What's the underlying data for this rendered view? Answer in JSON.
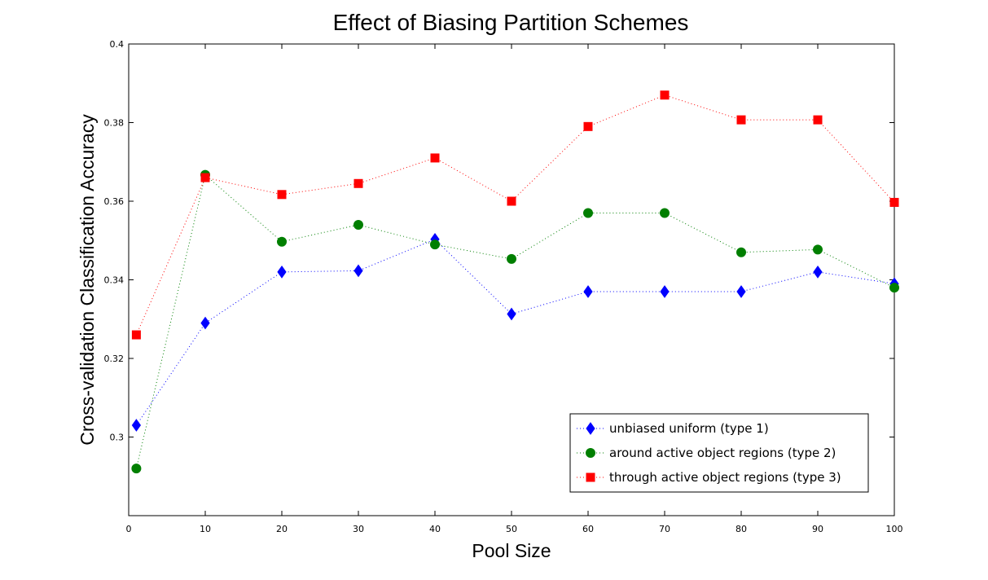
{
  "chart_data": {
    "type": "line",
    "title": "Effect of Biasing Partition Schemes",
    "xlabel": "Pool Size",
    "ylabel": "Cross-validation Classification Accuracy",
    "xlim": [
      0,
      100
    ],
    "ylim": [
      0.28,
      0.4
    ],
    "x_ticks": [
      "0",
      "10",
      "20",
      "30",
      "40",
      "50",
      "60",
      "70",
      "80",
      "90",
      "100"
    ],
    "y_ticks": [
      "0.3",
      "0.32",
      "0.34",
      "0.36",
      "0.38",
      "0.4"
    ],
    "grid": false,
    "legend_position": "bottom-right",
    "x": [
      1,
      10,
      20,
      30,
      40,
      50,
      60,
      70,
      80,
      90,
      100
    ],
    "series": [
      {
        "name": "unbiased uniform (type 1)",
        "color": "#0000ff",
        "marker": "diamond",
        "line_style": "dotted",
        "values": [
          0.303,
          0.329,
          0.342,
          0.3423,
          0.3503,
          0.3313,
          0.337,
          0.337,
          0.337,
          0.342,
          0.339
        ]
      },
      {
        "name": "around active object regions (type 2)",
        "color": "#007f00",
        "marker": "circle",
        "line_style": "dotted",
        "values": [
          0.292,
          0.3667,
          0.3497,
          0.354,
          0.349,
          0.3453,
          0.357,
          0.357,
          0.347,
          0.3477,
          0.338
        ]
      },
      {
        "name": "through active object regions (type 3)",
        "color": "#ff0000",
        "marker": "square",
        "line_style": "dotted",
        "values": [
          0.326,
          0.366,
          0.3617,
          0.3645,
          0.371,
          0.36,
          0.379,
          0.387,
          0.3807,
          0.3807,
          0.3597
        ]
      }
    ]
  }
}
